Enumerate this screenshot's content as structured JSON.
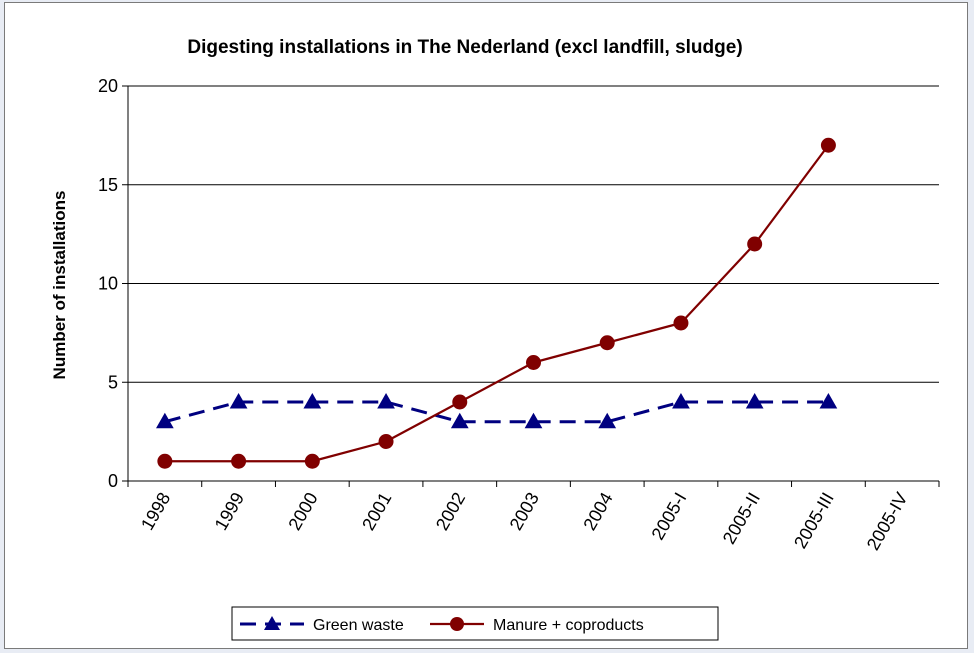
{
  "chart_data": {
    "type": "line",
    "title": "Digesting installations in The Nederland (excl landfill, sludge)",
    "xlabel": "",
    "ylabel": "Number of installations",
    "categories": [
      "1998",
      "1999",
      "2000",
      "2001",
      "2002",
      "2003",
      "2004",
      "2005-I",
      "2005-II",
      "2005-III",
      "2005-IV"
    ],
    "y_ticks": [
      "0",
      "5",
      "10",
      "15",
      "20"
    ],
    "ylim": [
      0,
      20
    ],
    "grid": "horizontal",
    "legend_position": "bottom",
    "series": [
      {
        "name": "Green waste",
        "values": [
          3,
          4,
          4,
          4,
          3,
          3,
          3,
          4,
          4,
          4,
          null
        ],
        "color": "#000080",
        "line_style": "dashed",
        "marker": "triangle"
      },
      {
        "name": "Manure + coproducts",
        "values": [
          1,
          1,
          1,
          2,
          4,
          6,
          7,
          8,
          12,
          17,
          null
        ],
        "color": "#800000",
        "line_style": "solid",
        "marker": "circle"
      }
    ]
  }
}
